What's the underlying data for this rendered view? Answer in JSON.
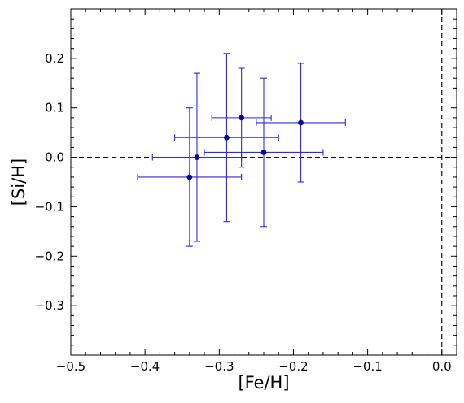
{
  "chart_data": {
    "type": "scatter",
    "title": "",
    "xlabel": "[Fe/H]",
    "ylabel": "[Si/H]",
    "xlim": [
      -0.5,
      0.02
    ],
    "ylim": [
      -0.4,
      0.3
    ],
    "x_ticks": [
      -0.5,
      -0.4,
      -0.3,
      -0.2,
      -0.1,
      0.0
    ],
    "x_tick_labels": [
      "−0.5",
      "−0.4",
      "−0.3",
      "−0.2",
      "−0.1",
      "0.0"
    ],
    "y_ticks": [
      -0.3,
      -0.2,
      -0.1,
      0.0,
      0.1,
      0.2
    ],
    "y_tick_labels": [
      "−0.3",
      "−0.2",
      "−0.1",
      "0.0",
      "0.1",
      "0.2"
    ],
    "x_minor_step": 0.02,
    "y_minor_step": 0.02,
    "grid": false,
    "reference_lines": [
      {
        "orientation": "horizontal",
        "value": 0.0,
        "style": "dashed"
      },
      {
        "orientation": "vertical",
        "value": 0.0,
        "style": "dashed"
      }
    ],
    "colors": {
      "marker": "#0a0a8c",
      "errorbar": "#2a2ae8",
      "reference": "#000000"
    },
    "points": [
      {
        "x": -0.34,
        "y": -0.04,
        "xerr": 0.07,
        "yerr": 0.14
      },
      {
        "x": -0.33,
        "y": 0.0,
        "xerr": 0.06,
        "yerr": 0.17
      },
      {
        "x": -0.29,
        "y": 0.04,
        "xerr": 0.07,
        "yerr": 0.17
      },
      {
        "x": -0.27,
        "y": 0.08,
        "xerr": 0.04,
        "yerr": 0.1
      },
      {
        "x": -0.24,
        "y": 0.01,
        "xerr": 0.08,
        "yerr": 0.15
      },
      {
        "x": -0.19,
        "y": 0.07,
        "xerr": 0.06,
        "yerr": 0.12
      }
    ]
  }
}
